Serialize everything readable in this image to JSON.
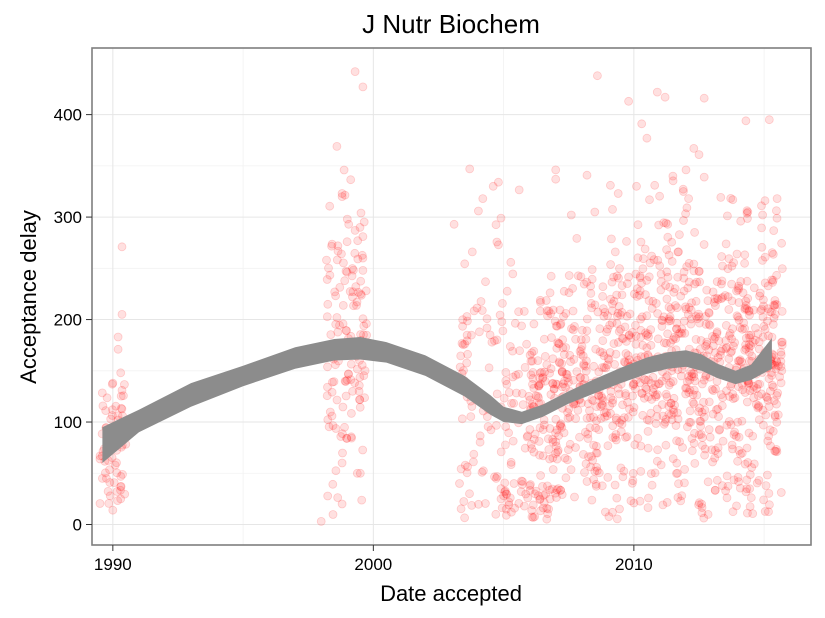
{
  "chart_data": {
    "type": "scatter",
    "title": "J Nutr Biochem",
    "xlabel": "Date accepted",
    "ylabel": "Acceptance delay",
    "xlim": [
      1989.2,
      2016.8
    ],
    "ylim": [
      -20,
      465
    ],
    "x_ticks": [
      1990,
      2000,
      2010
    ],
    "x_tick_labels": [
      "1990",
      "2000",
      "2010"
    ],
    "y_ticks": [
      0,
      100,
      200,
      300,
      400
    ],
    "y_tick_labels": [
      "0",
      "100",
      "200",
      "300",
      "400"
    ],
    "grid": true,
    "point_color": "#ff0000",
    "point_alpha": 0.12,
    "band_color": "#8c8c8c",
    "smooth": {
      "x": [
        1989.6,
        1991,
        1993,
        1995,
        1997,
        1998.5,
        1999.5,
        2000.5,
        2002,
        2003.5,
        2004.5,
        2005,
        2005.7,
        2006.5,
        2007.5,
        2008.5,
        2009.5,
        2010.5,
        2011.3,
        2012,
        2012.6,
        2013.2,
        2013.9,
        2014.5,
        2015.3
      ],
      "lower": [
        60,
        90,
        115,
        135,
        152,
        160,
        161,
        158,
        145,
        125,
        107,
        100,
        98,
        105,
        118,
        128,
        138,
        147,
        152,
        154,
        150,
        143,
        137,
        141,
        152
      ],
      "upper": [
        95,
        112,
        138,
        155,
        173,
        181,
        183,
        178,
        165,
        145,
        126,
        115,
        110,
        117,
        130,
        142,
        153,
        163,
        168,
        170,
        166,
        157,
        150,
        156,
        182
      ]
    },
    "clusters": [
      {
        "n": 60,
        "x": [
          1989.5,
          1990.5
        ],
        "y_mean": 85,
        "y_sd": 35
      },
      {
        "n": 130,
        "x": [
          1998.2,
          1999.8
        ],
        "y_mean": 160,
        "y_sd": 70
      },
      {
        "n": 130,
        "x": [
          2003.3,
          2006.0
        ],
        "y_mean": 150,
        "y_sd": 80
      },
      {
        "n": 1100,
        "x": [
          2006.0,
          2015.7
        ],
        "y_mean": 150,
        "y_sd": 65
      }
    ],
    "points_manual": [
      [
        1990.0,
        14
      ],
      [
        1990.0,
        138
      ],
      [
        1990.2,
        183
      ],
      [
        1990.2,
        171
      ],
      [
        1990.3,
        148
      ],
      [
        1990.35,
        131
      ],
      [
        1990.2,
        102
      ],
      [
        1990.35,
        205
      ],
      [
        1990.35,
        271
      ],
      [
        1990.3,
        25
      ],
      [
        1989.9,
        28
      ],
      [
        1989.6,
        45
      ],
      [
        1998.0,
        3
      ],
      [
        1998.6,
        369
      ],
      [
        1998.8,
        323
      ],
      [
        1999.3,
        442
      ],
      [
        1999.6,
        427
      ],
      [
        1998.8,
        320
      ],
      [
        1999.6,
        260
      ],
      [
        1999.6,
        248
      ],
      [
        1998.2,
        258
      ],
      [
        1998.6,
        202
      ],
      [
        1999.0,
        298
      ],
      [
        1999.3,
        287
      ],
      [
        1999.6,
        281
      ],
      [
        1999.4,
        277
      ],
      [
        1999.2,
        222
      ],
      [
        1998.8,
        60
      ],
      [
        1998.8,
        20
      ],
      [
        1999.5,
        50
      ],
      [
        2003.1,
        293
      ],
      [
        2003.7,
        347
      ],
      [
        2004.6,
        330
      ],
      [
        2004.8,
        334
      ],
      [
        2004.2,
        318
      ],
      [
        2004.9,
        299
      ],
      [
        2004.8,
        273
      ],
      [
        2003.8,
        266
      ],
      [
        2005.1,
        15
      ],
      [
        2005.2,
        22
      ],
      [
        2005.0,
        28
      ],
      [
        2005.2,
        19
      ],
      [
        2004.9,
        25
      ],
      [
        2005.1,
        30
      ],
      [
        2005.3,
        12
      ],
      [
        2004.7,
        10
      ],
      [
        2004.9,
        35
      ],
      [
        2005.4,
        40
      ],
      [
        2008.6,
        438
      ],
      [
        2009.8,
        413
      ],
      [
        2010.9,
        422
      ],
      [
        2010.5,
        377
      ],
      [
        2010.3,
        391
      ],
      [
        2011.2,
        417
      ],
      [
        2012.7,
        416
      ],
      [
        2012.3,
        367
      ],
      [
        2012.5,
        361
      ],
      [
        2014.3,
        394
      ],
      [
        2015.2,
        395
      ],
      [
        2012.0,
        346
      ],
      [
        2011.5,
        340
      ],
      [
        2012.1,
        318
      ],
      [
        2012.7,
        339
      ],
      [
        2011.9,
        325
      ],
      [
        2010.8,
        331
      ],
      [
        2010.1,
        330
      ],
      [
        2009.1,
        331
      ],
      [
        2007.0,
        346
      ],
      [
        2007.0,
        337
      ],
      [
        2007.6,
        302
      ],
      [
        2008.5,
        305
      ],
      [
        2013.8,
        317
      ],
      [
        2014.1,
        296
      ],
      [
        2014.9,
        311
      ],
      [
        2011.3,
        293
      ],
      [
        2010.6,
        317
      ],
      [
        2009.4,
        323
      ],
      [
        2015.5,
        318
      ],
      [
        2011.8,
        23
      ],
      [
        2012.6,
        20
      ],
      [
        2010.0,
        21
      ],
      [
        2013.4,
        38
      ],
      [
        2014.0,
        46
      ],
      [
        2014.8,
        43
      ],
      [
        2009.0,
        46
      ],
      [
        2008.2,
        42
      ],
      [
        2007.1,
        35
      ],
      [
        2006.2,
        30
      ],
      [
        2006.4,
        25
      ],
      [
        2005.8,
        18
      ]
    ]
  }
}
